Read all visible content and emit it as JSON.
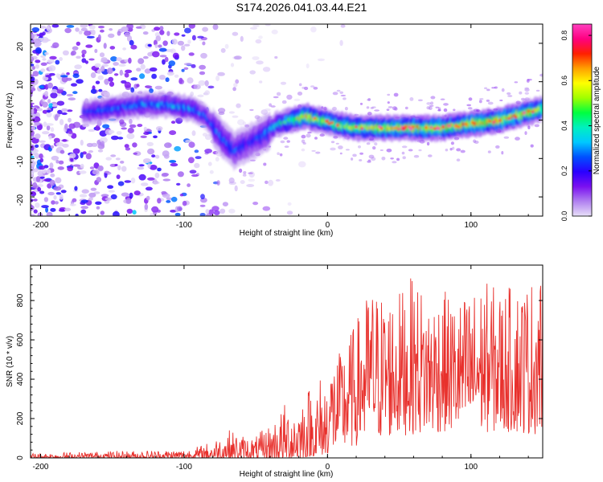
{
  "title": "S174.2026.041.03.44.E21",
  "chart_data": [
    {
      "type": "heatmap",
      "title": "",
      "xlabel": "Height of straight line (km)",
      "ylabel": "Frequency (Hz)",
      "xlim": [
        -207,
        150
      ],
      "ylim": [
        -25,
        25
      ],
      "xticks": [
        -200,
        -100,
        0,
        100
      ],
      "yticks": [
        -20,
        -10,
        0,
        10,
        20
      ],
      "colorbar": {
        "label": "Normalized spectral amplitude",
        "range": [
          0,
          0.85
        ],
        "ticks": [
          0.0,
          0.2,
          0.4,
          0.6,
          0.8
        ],
        "colors": [
          "#e8e0f8",
          "#b080f0",
          "#7a10f0",
          "#2a00ff",
          "#0050ff",
          "#00c8ff",
          "#00f0c0",
          "#00ff40",
          "#a0ff00",
          "#ffff00",
          "#ffa000",
          "#ff2000",
          "#ff0080",
          "#ff40c0"
        ]
      },
      "ridge": {
        "x": [
          -170,
          -150,
          -130,
          -110,
          -95,
          -85,
          -75,
          -65,
          -55,
          -45,
          -35,
          -25,
          -15,
          -5,
          5,
          20,
          40,
          60,
          80,
          100,
          120,
          140,
          150
        ],
        "frequency": [
          2,
          3,
          4,
          4,
          3,
          1,
          -4,
          -8,
          -6,
          -4,
          -1,
          0,
          1,
          0,
          -1,
          -2,
          -2,
          -2,
          -2,
          -1,
          0,
          2,
          3
        ],
        "amplitude": [
          0.22,
          0.25,
          0.28,
          0.3,
          0.3,
          0.25,
          0.25,
          0.25,
          0.2,
          0.25,
          0.35,
          0.45,
          0.6,
          0.5,
          0.5,
          0.5,
          0.55,
          0.6,
          0.55,
          0.6,
          0.6,
          0.55,
          0.5
        ]
      }
    },
    {
      "type": "line",
      "title": "",
      "xlabel": "Height of straight line (km)",
      "ylabel": "SNR (10 * v/v)",
      "xlim": [
        -207,
        150
      ],
      "ylim": [
        0,
        980
      ],
      "xticks": [
        -200,
        -100,
        0,
        100
      ],
      "yticks": [
        0,
        200,
        400,
        600,
        800
      ],
      "color": "#e8302c",
      "envelope": {
        "x": [
          -207,
          -180,
          -150,
          -120,
          -100,
          -90,
          -80,
          -70,
          -60,
          -50,
          -40,
          -30,
          -20,
          -10,
          0,
          10,
          20,
          30,
          40,
          50,
          60,
          70,
          80,
          90,
          100,
          110,
          120,
          130,
          140,
          150
        ],
        "low": [
          0,
          0,
          0,
          0,
          0,
          0,
          0,
          0,
          0,
          0,
          0,
          0,
          0,
          10,
          20,
          30,
          60,
          80,
          100,
          110,
          120,
          120,
          130,
          130,
          130,
          130,
          130,
          130,
          120,
          120
        ],
        "high": [
          25,
          30,
          35,
          40,
          45,
          60,
          90,
          150,
          120,
          110,
          180,
          280,
          350,
          400,
          470,
          550,
          700,
          880,
          830,
          850,
          930,
          820,
          860,
          800,
          850,
          900,
          860,
          880,
          900,
          970
        ]
      }
    }
  ]
}
